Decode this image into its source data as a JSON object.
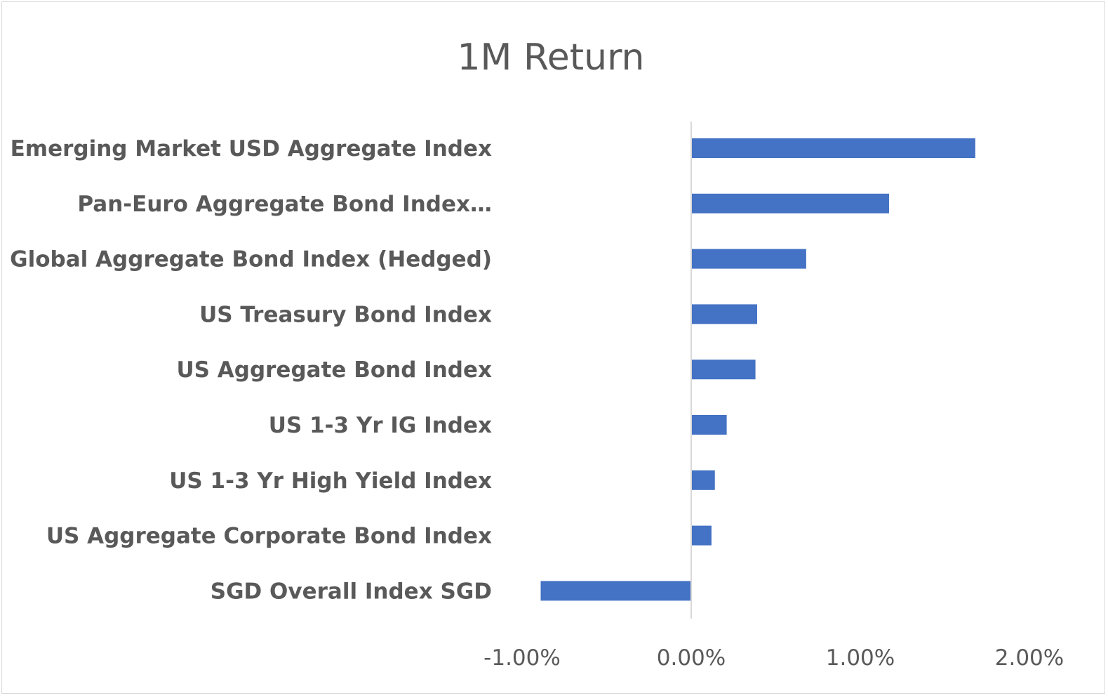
{
  "chart_data": {
    "type": "bar",
    "orientation": "horizontal",
    "title": "1M Return",
    "categories": [
      "Emerging Market USD Aggregate Index",
      "Pan-Euro Aggregate Bond Index…",
      "Global Aggregate Bond Index (Hedged)",
      "US Treasury Bond Index",
      "US Aggregate Bond Index",
      "US 1-3 Yr IG Index",
      "US 1-3 Yr High Yield Index",
      "US Aggregate Corporate Bond Index",
      "SGD Overall Index SGD"
    ],
    "values": [
      1.68,
      1.17,
      0.68,
      0.39,
      0.38,
      0.21,
      0.14,
      0.12,
      -0.89
    ],
    "x_ticks": [
      "-1.00%",
      "0.00%",
      "1.00%",
      "2.00%"
    ],
    "x_tick_values": [
      -1,
      0,
      1,
      2
    ],
    "xlim": [
      -1,
      2
    ],
    "xlabel": "",
    "ylabel": "",
    "grid": false,
    "legend": "none",
    "bar_color": "#4472C4",
    "axis_color": "#d9d9d9",
    "text_color": "#595959"
  }
}
